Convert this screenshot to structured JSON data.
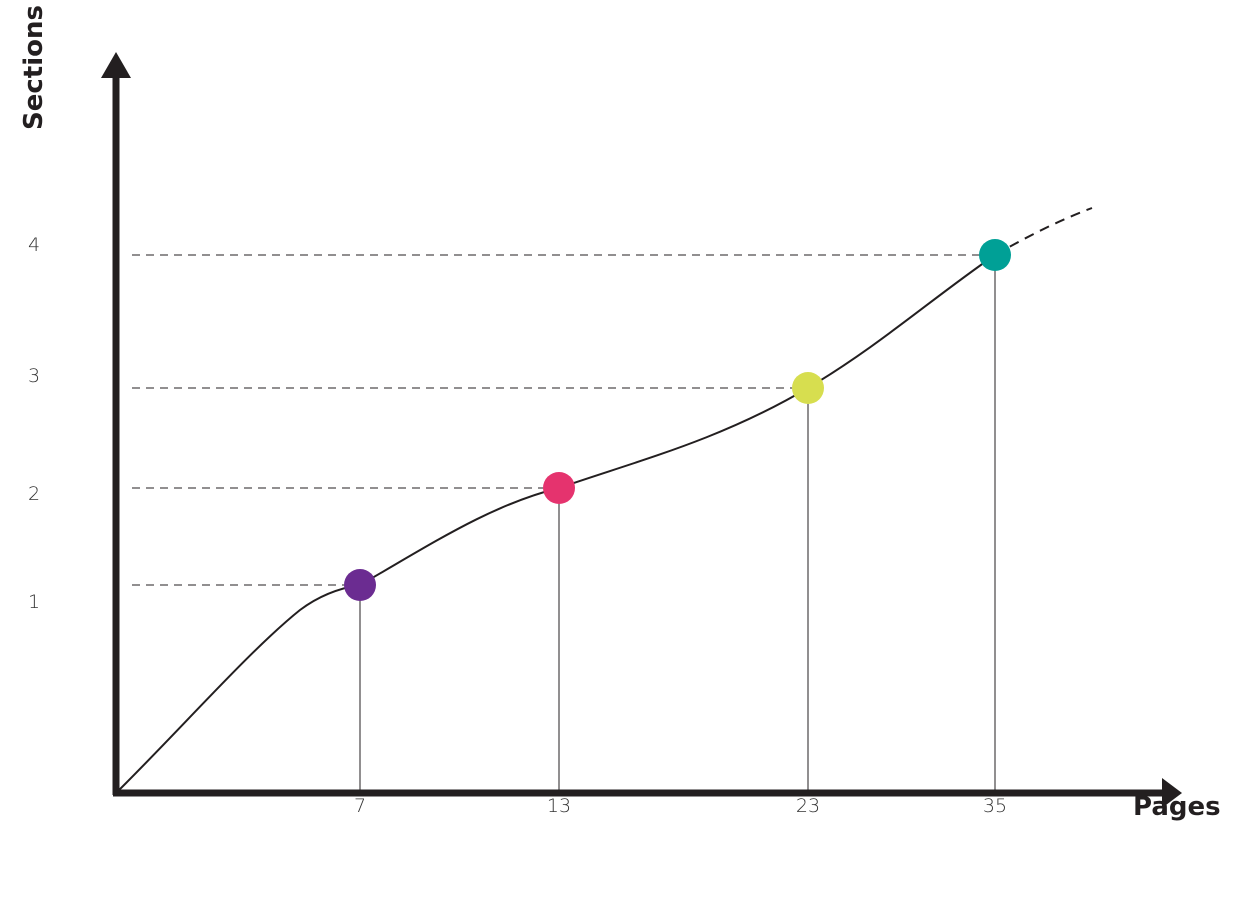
{
  "chart_data": {
    "type": "line",
    "xlabel": "Pages",
    "ylabel": "Sections",
    "x_ticks": [
      "7",
      "13",
      "23",
      "35"
    ],
    "y_ticks": [
      "1",
      "2",
      "3",
      "4"
    ],
    "points": [
      {
        "x": 7,
        "y": 1,
        "color": "#6b2c91"
      },
      {
        "x": 13,
        "y": 2,
        "color": "#e5336e"
      },
      {
        "x": 23,
        "y": 3,
        "color": "#d7de4f"
      },
      {
        "x": 35,
        "y": 4,
        "color": "#00a096"
      }
    ],
    "axis_color": "#231f20",
    "line_color": "#231f20",
    "grid": false
  }
}
